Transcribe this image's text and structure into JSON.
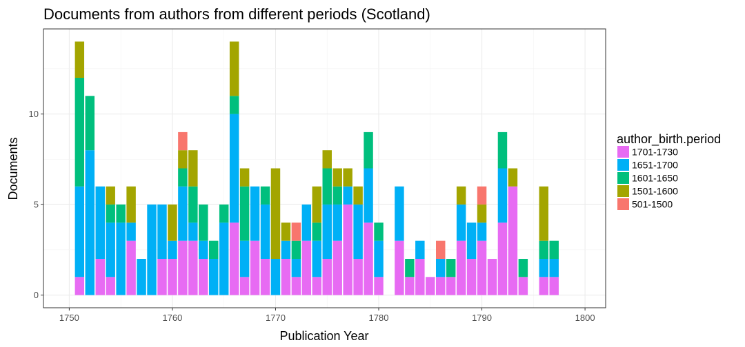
{
  "chart_data": {
    "type": "bar",
    "stacked": true,
    "title": "Documents from authors from different periods (Scotland)",
    "xlabel": "Publication Year",
    "ylabel": "Documents",
    "xlim": [
      1747.5,
      1802.0
    ],
    "ylim": [
      -0.7,
      14.7
    ],
    "x_ticks": [
      1750,
      1760,
      1770,
      1780,
      1790,
      1800
    ],
    "y_ticks": [
      0,
      5,
      10
    ],
    "grid": true,
    "legend_placement": "right",
    "legend_title": "author_birth.period",
    "stack_order": [
      "1701-1730",
      "1651-1700",
      "1601-1650",
      "1501-1600",
      "501-1500"
    ],
    "colors": {
      "1701-1730": "#E76BF3",
      "1651-1700": "#00B0F6",
      "1601-1650": "#00BF7D",
      "1501-1600": "#A3A500",
      "501-1500": "#F8766D"
    },
    "legend": [
      "1701-1730",
      "1651-1700",
      "1601-1650",
      "1501-1600",
      "501-1500"
    ],
    "bars": [
      {
        "year": 1751,
        "values": {
          "1701-1730": 1,
          "1651-1700": 5,
          "1601-1650": 6,
          "1501-1600": 2
        }
      },
      {
        "year": 1752,
        "values": {
          "1651-1700": 8,
          "1601-1650": 3
        }
      },
      {
        "year": 1753,
        "values": {
          "1701-1730": 2,
          "1651-1700": 4
        }
      },
      {
        "year": 1754,
        "values": {
          "1701-1730": 1,
          "1651-1700": 3,
          "1601-1650": 1,
          "1501-1600": 1
        }
      },
      {
        "year": 1755,
        "values": {
          "1651-1700": 4,
          "1601-1650": 1
        }
      },
      {
        "year": 1756,
        "values": {
          "1701-1730": 3,
          "1651-1700": 1,
          "1501-1600": 2
        }
      },
      {
        "year": 1757,
        "values": {
          "1651-1700": 2
        }
      },
      {
        "year": 1758,
        "values": {
          "1651-1700": 5
        }
      },
      {
        "year": 1759,
        "values": {
          "1701-1730": 2,
          "1651-1700": 3
        }
      },
      {
        "year": 1760,
        "values": {
          "1701-1730": 2,
          "1651-1700": 1,
          "1501-1600": 2
        }
      },
      {
        "year": 1761,
        "values": {
          "1701-1730": 3,
          "1651-1700": 3,
          "1601-1650": 1,
          "1501-1600": 1,
          "501-1500": 1
        }
      },
      {
        "year": 1762,
        "values": {
          "1701-1730": 3,
          "1651-1700": 1,
          "1601-1650": 2,
          "1501-1600": 2
        }
      },
      {
        "year": 1763,
        "values": {
          "1701-1730": 2,
          "1651-1700": 1,
          "1601-1650": 2
        }
      },
      {
        "year": 1764,
        "values": {
          "1651-1700": 2,
          "1601-1650": 1
        }
      },
      {
        "year": 1765,
        "values": {
          "1651-1700": 4,
          "1601-1650": 1
        }
      },
      {
        "year": 1766,
        "values": {
          "1701-1730": 4,
          "1651-1700": 6,
          "1601-1650": 1,
          "1501-1600": 3
        }
      },
      {
        "year": 1767,
        "values": {
          "1701-1730": 1,
          "1651-1700": 2,
          "1601-1650": 3,
          "1501-1600": 1
        }
      },
      {
        "year": 1768,
        "values": {
          "1701-1730": 3,
          "1651-1700": 3
        }
      },
      {
        "year": 1769,
        "values": {
          "1701-1730": 2,
          "1651-1700": 3,
          "1601-1650": 1
        }
      },
      {
        "year": 1770,
        "values": {
          "1651-1700": 2,
          "1501-1600": 5
        }
      },
      {
        "year": 1771,
        "values": {
          "1701-1730": 2,
          "1651-1700": 1,
          "1501-1600": 1
        }
      },
      {
        "year": 1772,
        "values": {
          "1701-1730": 1,
          "1651-1700": 1,
          "1601-1650": 1,
          "501-1500": 1
        }
      },
      {
        "year": 1773,
        "values": {
          "1701-1730": 3,
          "1651-1700": 2
        }
      },
      {
        "year": 1774,
        "values": {
          "1701-1730": 1,
          "1651-1700": 2,
          "1601-1650": 1,
          "1501-1600": 2
        }
      },
      {
        "year": 1775,
        "values": {
          "1701-1730": 2,
          "1651-1700": 3,
          "1601-1650": 2,
          "1501-1600": 1
        }
      },
      {
        "year": 1776,
        "values": {
          "1701-1730": 3,
          "1651-1700": 2,
          "1601-1650": 1,
          "1501-1600": 1
        }
      },
      {
        "year": 1777,
        "values": {
          "1701-1730": 5,
          "1651-1700": 1,
          "1501-1600": 1
        }
      },
      {
        "year": 1778,
        "values": {
          "1701-1730": 2,
          "1651-1700": 3,
          "1501-1600": 1
        }
      },
      {
        "year": 1779,
        "values": {
          "1701-1730": 4,
          "1651-1700": 3,
          "1601-1650": 2
        }
      },
      {
        "year": 1780,
        "values": {
          "1701-1730": 1,
          "1651-1700": 2,
          "1601-1650": 1
        }
      },
      {
        "year": 1782,
        "values": {
          "1701-1730": 3,
          "1651-1700": 3
        }
      },
      {
        "year": 1783,
        "values": {
          "1701-1730": 1,
          "1601-1650": 1
        }
      },
      {
        "year": 1784,
        "values": {
          "1701-1730": 2,
          "1651-1700": 1
        }
      },
      {
        "year": 1785,
        "values": {
          "1701-1730": 1
        }
      },
      {
        "year": 1786,
        "values": {
          "1701-1730": 1,
          "1651-1700": 1,
          "501-1500": 1
        }
      },
      {
        "year": 1787,
        "values": {
          "1701-1730": 1,
          "1601-1650": 1
        }
      },
      {
        "year": 1788,
        "values": {
          "1701-1730": 3,
          "1651-1700": 2,
          "1501-1600": 1
        }
      },
      {
        "year": 1789,
        "values": {
          "1701-1730": 2,
          "1651-1700": 2
        }
      },
      {
        "year": 1790,
        "values": {
          "1701-1730": 3,
          "1651-1700": 1,
          "1501-1600": 1,
          "501-1500": 1
        }
      },
      {
        "year": 1791,
        "values": {
          "1701-1730": 2
        }
      },
      {
        "year": 1792,
        "values": {
          "1701-1730": 4,
          "1651-1700": 3,
          "1601-1650": 2
        }
      },
      {
        "year": 1793,
        "values": {
          "1701-1730": 6,
          "1501-1600": 1
        }
      },
      {
        "year": 1794,
        "values": {
          "1701-1730": 1,
          "1601-1650": 1
        }
      },
      {
        "year": 1796,
        "values": {
          "1701-1730": 1,
          "1651-1700": 1,
          "1601-1650": 1,
          "1501-1600": 3
        }
      },
      {
        "year": 1797,
        "values": {
          "1701-1730": 1,
          "1651-1700": 1,
          "1601-1650": 1
        }
      }
    ]
  }
}
